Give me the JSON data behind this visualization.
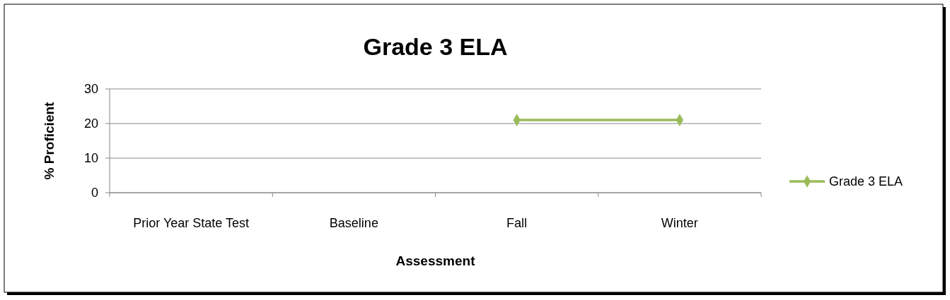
{
  "chart_data": {
    "type": "line",
    "title": "Grade 3 ELA",
    "xlabel": "Assessment",
    "ylabel": "% Proficient",
    "categories": [
      "Prior Year State Test",
      "Baseline",
      "Fall",
      "Winter"
    ],
    "series": [
      {
        "name": "Grade 3 ELA",
        "color": "#9bbb59",
        "values": [
          null,
          null,
          21,
          21
        ]
      }
    ],
    "ylim": [
      0,
      30
    ],
    "yticks": [
      0,
      10,
      20,
      30
    ],
    "grid": "y",
    "legend": "right",
    "marker": "diamond"
  }
}
